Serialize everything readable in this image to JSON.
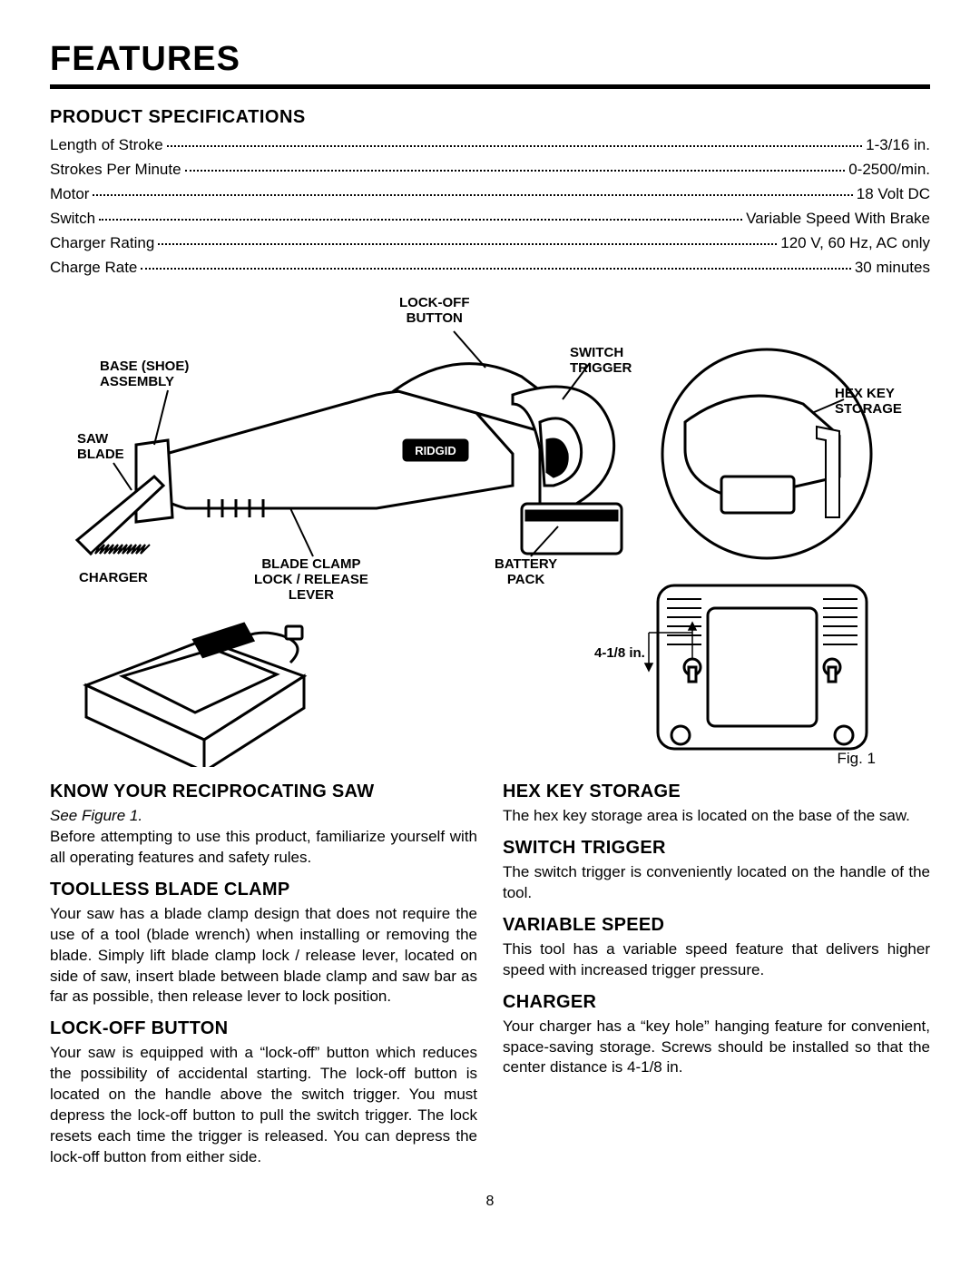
{
  "title": "FEATURES",
  "specs_heading": "PRODUCT SPECIFICATIONS",
  "specs": [
    {
      "label": "Length of Stroke",
      "value": "1-3/16 in."
    },
    {
      "label": "Strokes Per Minute",
      "value": "0-2500/min."
    },
    {
      "label": "Motor",
      "value": "18 Volt DC"
    },
    {
      "label": "Switch",
      "value": "Variable Speed With Brake"
    },
    {
      "label": "Charger Rating",
      "value": "120 V, 60 Hz, AC only"
    },
    {
      "label": "Charge Rate",
      "value": "30 minutes"
    }
  ],
  "diagram": {
    "labels": {
      "lockoff": "LOCK-OFF\nBUTTON",
      "switch": "SWITCH\nTRIGGER",
      "hexkey": "HEX KEY\nSTORAGE",
      "base": "BASE (SHOE)\nASSEMBLY",
      "sawblade": "SAW\nBLADE",
      "bladeclamp": "BLADE CLAMP\nLOCK / RELEASE\nLEVER",
      "battery": "BATTERY\nPACK",
      "charger": "CHARGER",
      "measure": "4-1/8 in."
    },
    "fig_caption": "Fig. 1",
    "colors": {
      "line": "#000000",
      "fill": "#ffffff",
      "bg": "#ffffff"
    }
  },
  "left_col": {
    "h1": "KNOW YOUR RECIPROCATING SAW",
    "see": "See Figure 1.",
    "p1": "Before attempting to use this product, familiarize yourself with all operating features and safety rules.",
    "h2": "TOOLLESS BLADE CLAMP",
    "p2": "Your saw has a blade clamp design that does not require the use of a tool (blade wrench) when installing or removing the blade. Simply lift blade clamp lock / release lever, located on side of saw, insert blade between blade clamp and saw bar as far as possible, then release lever to lock position.",
    "h3": "LOCK-OFF BUTTON",
    "p3": "Your saw is equipped with a “lock-off” button which reduces the possibility of accidental starting. The lock-off button is located on the handle above the switch trigger. You must depress the lock-off button to pull the switch trigger. The lock resets each time the trigger is released. You can depress the lock-off button from either side."
  },
  "right_col": {
    "h1": "HEX KEY STORAGE",
    "p1": "The hex key storage area is located on the base of the saw.",
    "h2": "SWITCH TRIGGER",
    "p2": "The switch trigger is conveniently located on the handle of the tool.",
    "h3": "VARIABLE SPEED",
    "p3": "This tool has a variable speed feature that delivers higher speed with increased trigger pressure.",
    "h4": "CHARGER",
    "p4": "Your charger has a “key hole” hanging feature for convenient, space-saving storage. Screws should be installed so that the center distance is 4-1/8 in."
  },
  "page_number": "8"
}
